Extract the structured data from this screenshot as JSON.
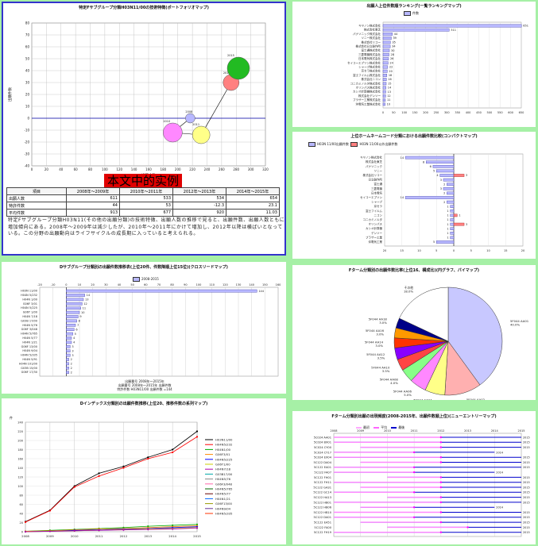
{
  "panel1": {
    "title": "特定Fサブグループ分類H03N11/00の技術特徴(ポートフォリオマップ)",
    "overlay_text": "本文中的实例",
    "table": {
      "headers": [
        "項目",
        "2008年～2009年",
        "2010年～2011年",
        "2012年～2013年",
        "2014年～2015年"
      ],
      "rows": [
        [
          "出願人数",
          "611",
          "533",
          "534",
          "654"
        ],
        [
          "特許件数",
          "44",
          "53",
          "-12.3",
          "23.1"
        ],
        [
          "平均件数",
          "913",
          "677",
          "920",
          "11.03"
        ]
      ]
    },
    "paragraph": "特定Fサブグループ分類H03N11(その他の出願分類)の技術特徴、出願人数の推移で見ると、出願件数、出願人数ともに増加傾向にある。2008年～2009年は減少したが、2010年～2011年にかけて増加し、2012年以降は横ばいとなっている。この分野の出願動向はライフサイクルの成長期に入っていると考えられる。",
    "chart_data": {
      "type": "scatter",
      "xlabel": "出願人数",
      "ylabel": "出願件数",
      "xlim": [
        0,
        320
      ],
      "ylim": [
        -40,
        80
      ],
      "x_ticks": [
        0,
        20,
        40,
        60,
        80,
        100,
        120,
        140,
        160,
        180,
        200,
        220,
        240,
        260,
        280,
        300,
        320
      ],
      "y_ticks": [
        -40,
        -30,
        -20,
        -10,
        0,
        10,
        20,
        30,
        40,
        50,
        60,
        70,
        80
      ],
      "points": [
        {
          "x": 217,
          "y": 0,
          "size": 6,
          "color": "#b8b8ff",
          "label": "2008"
        },
        {
          "x": 193,
          "y": -12,
          "size": 12,
          "color": "#ff88ff",
          "label": "2010"
        },
        {
          "x": 232,
          "y": -14,
          "size": 11,
          "color": "#ffff88",
          "label": "2011"
        },
        {
          "x": 273,
          "y": 30,
          "size": 10,
          "color": "#ff8080",
          "label": "2013"
        },
        {
          "x": 283,
          "y": 42,
          "size": 14,
          "color": "#22bb22",
          "label": "2015"
        }
      ]
    }
  },
  "panel2": {
    "title": "出願人上位件数順ランキング(一覧ランキングマップ)",
    "legend": "件数",
    "chart_data": {
      "type": "bar",
      "orientation": "horizontal",
      "categories": [
        "キヤノン株式会社",
        "株式会社東芝",
        "パナソニック株式会社",
        "ソニー株式会社",
        "株式会社リコー",
        "株式会社日立製作所",
        "富士通株式会社",
        "三菱電機株式会社",
        "日本電気株式会社",
        "セイコーエプソン株式会社",
        "シャープ株式会社",
        "京セラ株式会社",
        "富士フイルム株式会社",
        "株式会社ニコン",
        "コニカミノルタ株式会社",
        "オリンパス株式会社",
        "カシオ計算機株式会社",
        "株式会社デンソー",
        "ブラザー工業株式会社",
        "沖電気工業株式会社"
      ],
      "values": [
        651,
        311,
        44,
        39,
        35,
        34,
        30,
        28,
        26,
        24,
        22,
        20,
        18,
        16,
        15,
        14,
        13,
        12,
        11,
        10
      ],
      "xlim": [
        0,
        650
      ]
    }
  },
  "panel3": {
    "title": "上位ホームネームコード分類における出願件数比較(コンパクトマップ)",
    "legend": [
      "H03N 11/00出願件数",
      "H03N 11/00以外出願件数"
    ],
    "chart_data": {
      "type": "bar",
      "orientation": "horizontal-diverging",
      "categories": [
        "キヤノン株式会社",
        "株式会社東芝",
        "パナソニック",
        "ソニー",
        "株式会社リコー",
        "日立製作所",
        "富士通",
        "三菱電機",
        "日本電気",
        "セイコーエプソン",
        "シャープ",
        "京セラ",
        "富士フイルム",
        "ニコン",
        "コニカミノルタ",
        "オリンパス",
        "カシオ計算機",
        "デンソー",
        "ブラザー工業",
        "沖電気工業"
      ],
      "left": [
        14,
        8,
        6,
        5,
        4,
        3,
        2,
        3,
        2,
        14,
        2,
        1,
        1,
        1,
        1,
        1,
        1,
        1,
        1,
        5
      ],
      "right": [
        0,
        0,
        0,
        0,
        3,
        0,
        0,
        0,
        0,
        0,
        0,
        0,
        0,
        1,
        0,
        3,
        0,
        0,
        0,
        0
      ],
      "xlim": [
        -20,
        20
      ]
    }
  },
  "panel4": {
    "title": "Dサブグループ分類別の出願件数推移表(上位20件、件数降順上位15位)(クロスリードマップ)",
    "legend": "2008-2015",
    "notes": [
      "出願番号 2008年～2015年",
      "出願番号 2008年～2015年 出願件数",
      "特許件数 H03N11/00 出願件数 =144"
    ],
    "chart_data": {
      "type": "bar",
      "orientation": "horizontal",
      "categories": [
        "H03N 11/00",
        "H04N 5/232",
        "H04N 1/00",
        "G06F 3/01",
        "H04N 5/225",
        "G06T 1/00",
        "H04N 7/18",
        "G03B 17/00",
        "H04N 5/76",
        "G06F 3/048",
        "H04N 5/765",
        "H04N 5/77",
        "H04N 1/21",
        "G06F 13/00",
        "H04N 9/04",
        "H04N 5/335",
        "H04N 5/91",
        "H04N 101/00",
        "G03B 15/00",
        "G06F 17/30"
      ],
      "values": [
        144,
        14,
        13,
        12,
        11,
        10,
        9,
        8,
        7,
        6,
        5,
        4,
        4,
        3,
        3,
        3,
        2,
        2,
        2,
        2
      ],
      "xlim": [
        -20,
        160
      ]
    }
  },
  "panel5": {
    "title": "Fターム分類別の出願件数比率(上位16、構成比)(円グラフ、パイマップ)",
    "chart_data": {
      "type": "pie",
      "labels": [
        "5F044 AA01",
        "5F044 AA02",
        "5F044 AA04",
        "5F044 AA06",
        "5F044 AA08",
        "5F044 AA10",
        "5F044 AA12",
        "5F044 AA14",
        "5F044 AA16",
        "5F044 AA18",
        "その他"
      ],
      "values": [
        40.0,
        11.0,
        6.0,
        5.0,
        4.0,
        3.5,
        3.5,
        3.0,
        3.0,
        3.0,
        18.0
      ],
      "colors": [
        "#c8c8ff",
        "#ffb0b0",
        "#ffff88",
        "#ff88ff",
        "#88ff88",
        "#ff4444",
        "#8800ff",
        "#ff3300",
        "#ff9900",
        "#000088",
        "#ffffff"
      ]
    }
  },
  "panel6": {
    "title": "Dインデックス分類別の出願件数推移(上位20、推移件数の系列マップ)",
    "ylabel": "件",
    "chart_data": {
      "type": "line",
      "x": [
        "2008",
        "2009",
        "2010",
        "2011",
        "2012",
        "2013",
        "2014",
        "2015"
      ],
      "ylim": [
        0,
        240
      ],
      "y_ticks": [
        0,
        20,
        40,
        60,
        80,
        100,
        120,
        140,
        160,
        180,
        200,
        220,
        240
      ],
      "series": [
        {
          "name": "H03N11/00",
          "color": "#000000",
          "values": [
            22,
            47,
            100,
            128,
            143,
            163,
            180,
            220
          ]
        },
        {
          "name": "H04N5/232",
          "color": "#ff0000",
          "values": [
            21,
            46,
            98,
            122,
            140,
            160,
            174,
            208
          ]
        },
        {
          "name": "H04N1/00",
          "color": "#00aa00",
          "values": [
            1,
            3,
            5,
            7,
            9,
            12,
            14,
            16
          ]
        },
        {
          "name": "G06F3/01",
          "color": "#ff8800",
          "values": [
            1,
            2,
            4,
            6,
            7,
            9,
            11,
            13
          ]
        },
        {
          "name": "H04N5/225",
          "color": "#0000ff",
          "values": [
            0,
            1,
            3,
            4,
            6,
            7,
            9,
            11
          ]
        },
        {
          "name": "G06T1/00",
          "color": "#cccc00",
          "values": [
            0,
            1,
            2,
            3,
            5,
            6,
            7,
            9
          ]
        },
        {
          "name": "H04N7/18",
          "color": "#aa00aa",
          "values": [
            0,
            1,
            2,
            3,
            4,
            5,
            6,
            8
          ]
        }
      ],
      "legend": [
        "H03N11/00",
        "H04N5/232",
        "H04N1/00",
        "G06F3/01",
        "H04N5/225",
        "G06T1/00",
        "H04N7/18",
        "G03B17/00",
        "H04N5/76",
        "G06F3/048",
        "H04N5/765",
        "H04N5/77",
        "H04N1/21",
        "G06F13/00",
        "H04N9/04",
        "H04N5/335"
      ]
    }
  },
  "panel7": {
    "title": "Fターム分類別出願の出現頻度(2008-2015年、出願件数順上位)(ニューエントリーマップ)",
    "legend": [
      "最初",
      "平均",
      "最後"
    ],
    "chart_data": {
      "type": "bar",
      "orientation": "horizontal-range",
      "categories": [
        "5C024 AA01",
        "5C024 BX01",
        "5C024 CY00",
        "5C024 CY17",
        "5C024 EX04",
        "5C122 DA04",
        "5C122 EA01",
        "5C122 FA07",
        "5C122 FH01",
        "5C122 FH11",
        "5C122 GA31",
        "5C122 GC14",
        "5C122 HA13",
        "5C122 HB01",
        "5C122 HB06",
        "5C122 HB10",
        "5C122 DA01",
        "5C122 EA51",
        "5C122 FA00",
        "5C122 FH19"
      ],
      "start": [
        2008,
        2008,
        2009,
        2008,
        2008,
        2009,
        2008,
        2008,
        2010,
        2008,
        2009,
        2008,
        2010,
        2008,
        2009,
        2008,
        2008,
        2009,
        2010,
        2008
      ],
      "mean": [
        2012,
        2012,
        2012,
        2011,
        2012,
        2012,
        2011,
        2011,
        2012,
        2012,
        2012,
        2011,
        2012,
        2012,
        2011,
        2012,
        2011,
        2012,
        2013,
        2012
      ],
      "end": [
        2015,
        2015,
        2015,
        2014,
        2015,
        2015,
        2015,
        2014,
        2015,
        2015,
        2015,
        2015,
        2015,
        2015,
        2014,
        2015,
        2015,
        2015,
        2015,
        2015
      ],
      "xlim": [
        2008,
        2015
      ]
    }
  }
}
